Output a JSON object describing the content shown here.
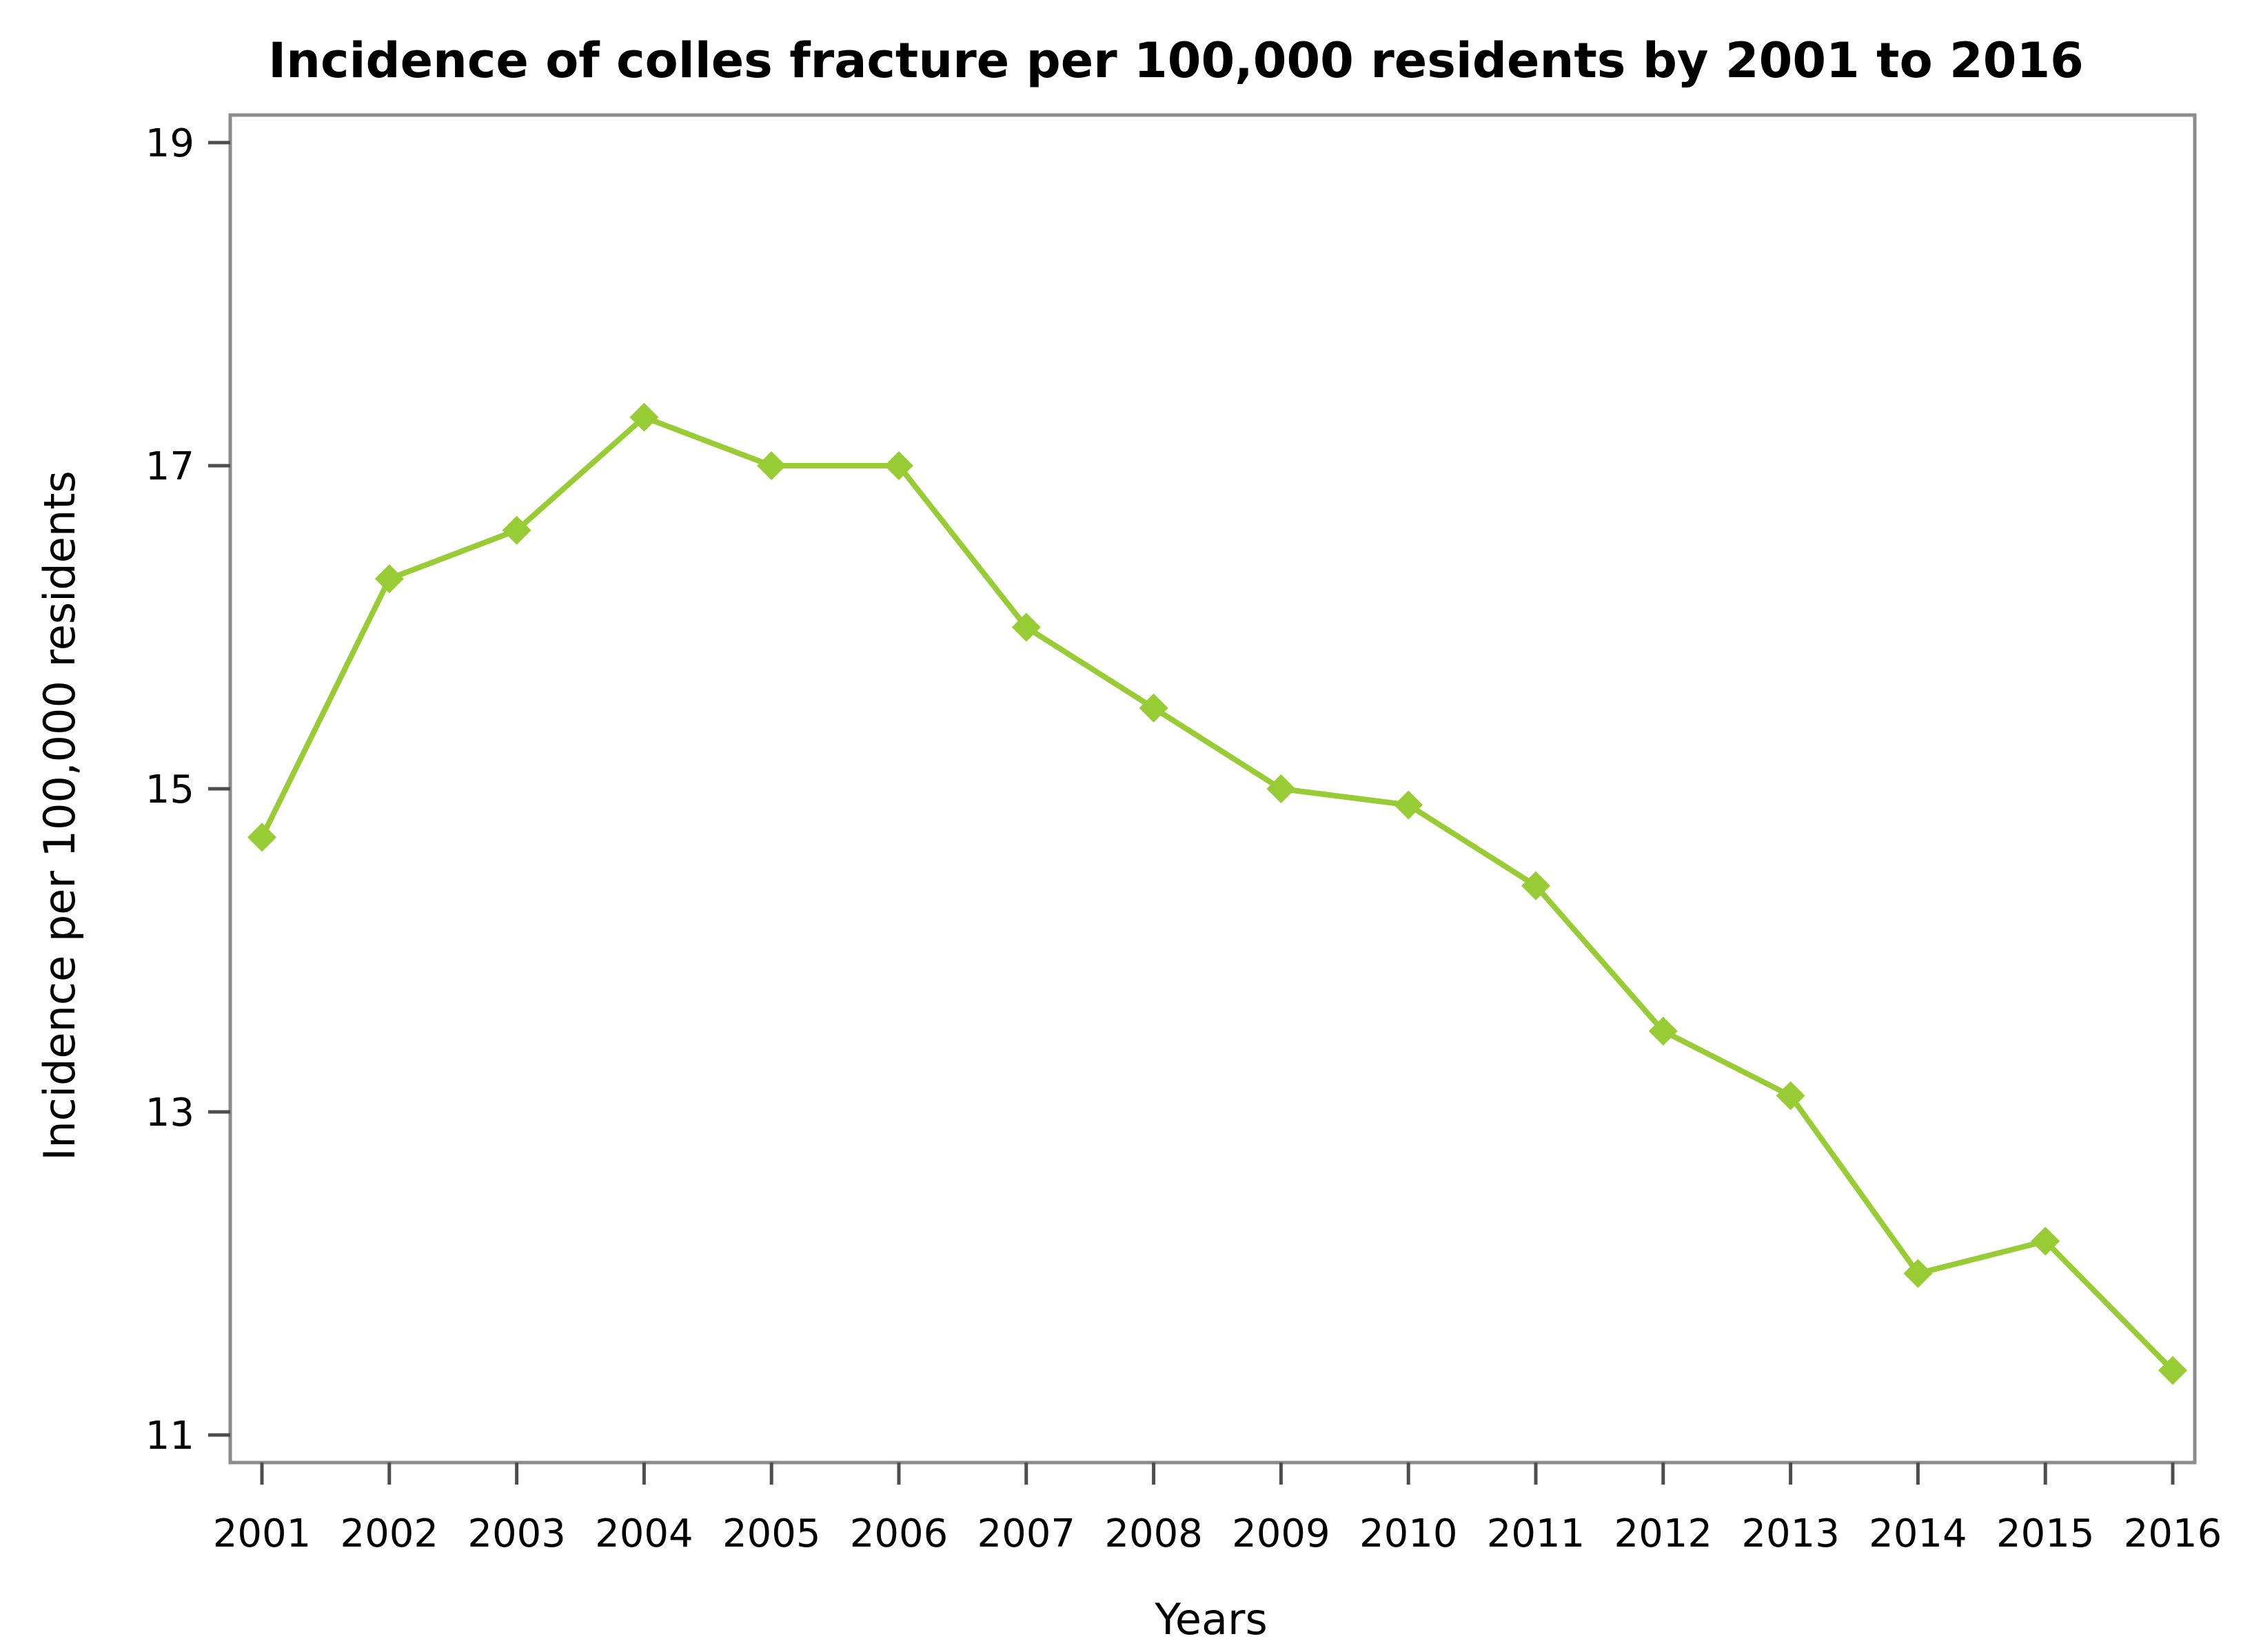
{
  "chart_data": {
    "type": "line",
    "title": "Incidence of colles fracture per 100,000 residents by 2001 to 2016",
    "xlabel": "Years",
    "ylabel": "Incidence per 100,000 residents",
    "categories": [
      "2001",
      "2002",
      "2003",
      "2004",
      "2005",
      "2006",
      "2007",
      "2008",
      "2009",
      "2010",
      "2011",
      "2012",
      "2013",
      "2014",
      "2015",
      "2016"
    ],
    "series": [
      {
        "values": [
          14.7,
          16.3,
          16.6,
          17.3,
          17.0,
          17.0,
          16.0,
          15.5,
          15.0,
          14.9,
          14.4,
          13.5,
          13.1,
          12.0,
          12.2,
          11.4
        ],
        "color": "#97cc34",
        "marker": "diamond"
      }
    ],
    "ylim": [
      11,
      19
    ],
    "yticks": [
      11,
      13,
      15,
      17,
      19
    ],
    "grid": false,
    "legend": "none"
  }
}
